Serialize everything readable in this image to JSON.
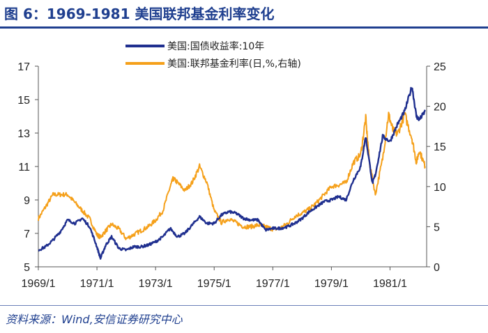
{
  "title": "图 6：1969-1981 美国联邦基金利率变化",
  "source": "资料来源：Wind,安信证券研究中心",
  "chart_data": {
    "type": "line",
    "legend": {
      "placement": "top-center"
    },
    "grid": false,
    "x_ticks": [
      "1969/1",
      "1971/1",
      "1973/1",
      "1975/1",
      "1977/1",
      "1979/1",
      "1981/1"
    ],
    "xlim": [
      1969.0,
      1982.25
    ],
    "y_left": {
      "lim": [
        5,
        17
      ],
      "ticks": [
        5,
        7,
        9,
        11,
        13,
        15,
        17
      ]
    },
    "y_right": {
      "lim": [
        0,
        25
      ],
      "ticks": [
        0,
        5,
        10,
        15,
        20,
        25
      ]
    },
    "series": [
      {
        "name": "美国:国债收益率:10年",
        "axis": "left",
        "color": "#1f2f8f",
        "points": [
          [
            1969.0,
            6.0
          ],
          [
            1969.25,
            6.2
          ],
          [
            1969.5,
            6.6
          ],
          [
            1969.75,
            7.1
          ],
          [
            1970.0,
            7.8
          ],
          [
            1970.25,
            7.6
          ],
          [
            1970.5,
            7.9
          ],
          [
            1970.75,
            7.4
          ],
          [
            1971.0,
            6.2
          ],
          [
            1971.12,
            5.5
          ],
          [
            1971.3,
            6.3
          ],
          [
            1971.5,
            6.8
          ],
          [
            1971.75,
            6.1
          ],
          [
            1972.0,
            6.0
          ],
          [
            1972.25,
            6.2
          ],
          [
            1972.5,
            6.2
          ],
          [
            1972.75,
            6.3
          ],
          [
            1973.0,
            6.5
          ],
          [
            1973.25,
            6.8
          ],
          [
            1973.5,
            7.3
          ],
          [
            1973.75,
            6.8
          ],
          [
            1974.0,
            7.0
          ],
          [
            1974.25,
            7.5
          ],
          [
            1974.5,
            8.0
          ],
          [
            1974.75,
            7.6
          ],
          [
            1975.0,
            7.6
          ],
          [
            1975.25,
            8.1
          ],
          [
            1975.5,
            8.3
          ],
          [
            1975.75,
            8.2
          ],
          [
            1976.0,
            7.9
          ],
          [
            1976.25,
            7.8
          ],
          [
            1976.5,
            7.8
          ],
          [
            1976.75,
            7.2
          ],
          [
            1977.0,
            7.3
          ],
          [
            1977.25,
            7.3
          ],
          [
            1977.5,
            7.4
          ],
          [
            1977.75,
            7.6
          ],
          [
            1978.0,
            7.9
          ],
          [
            1978.25,
            8.3
          ],
          [
            1978.5,
            8.6
          ],
          [
            1978.75,
            8.9
          ],
          [
            1979.0,
            9.0
          ],
          [
            1979.25,
            9.2
          ],
          [
            1979.5,
            9.0
          ],
          [
            1979.75,
            10.2
          ],
          [
            1980.0,
            11.0
          ],
          [
            1980.17,
            12.8
          ],
          [
            1980.4,
            10.0
          ],
          [
            1980.5,
            10.5
          ],
          [
            1980.75,
            12.8
          ],
          [
            1981.0,
            12.5
          ],
          [
            1981.25,
            13.5
          ],
          [
            1981.5,
            14.3
          ],
          [
            1981.75,
            15.8
          ],
          [
            1981.9,
            14.0
          ],
          [
            1982.0,
            13.8
          ],
          [
            1982.2,
            14.3
          ]
        ]
      },
      {
        "name": "美国:联邦基金利率(日,%,右轴)",
        "axis": "right",
        "color": "#f5a01a",
        "points": [
          [
            1969.0,
            6.0
          ],
          [
            1969.25,
            7.5
          ],
          [
            1969.5,
            9.0
          ],
          [
            1969.75,
            9.0
          ],
          [
            1970.0,
            9.0
          ],
          [
            1970.25,
            8.0
          ],
          [
            1970.5,
            7.0
          ],
          [
            1970.75,
            6.0
          ],
          [
            1971.0,
            4.0
          ],
          [
            1971.12,
            3.7
          ],
          [
            1971.3,
            4.5
          ],
          [
            1971.5,
            5.3
          ],
          [
            1971.75,
            4.7
          ],
          [
            1972.0,
            3.5
          ],
          [
            1972.25,
            4.0
          ],
          [
            1972.5,
            4.5
          ],
          [
            1972.75,
            5.0
          ],
          [
            1973.0,
            5.8
          ],
          [
            1973.25,
            7.0
          ],
          [
            1973.5,
            10.0
          ],
          [
            1973.6,
            11.0
          ],
          [
            1973.75,
            10.5
          ],
          [
            1974.0,
            9.5
          ],
          [
            1974.25,
            10.5
          ],
          [
            1974.5,
            12.5
          ],
          [
            1974.75,
            10.5
          ],
          [
            1975.0,
            7.0
          ],
          [
            1975.25,
            5.5
          ],
          [
            1975.5,
            6.0
          ],
          [
            1975.75,
            5.5
          ],
          [
            1976.0,
            5.0
          ],
          [
            1976.25,
            5.0
          ],
          [
            1976.5,
            5.2
          ],
          [
            1976.75,
            5.0
          ],
          [
            1977.0,
            4.7
          ],
          [
            1977.25,
            4.8
          ],
          [
            1977.5,
            5.4
          ],
          [
            1977.75,
            6.3
          ],
          [
            1978.0,
            6.7
          ],
          [
            1978.25,
            7.2
          ],
          [
            1978.5,
            8.0
          ],
          [
            1978.75,
            9.0
          ],
          [
            1979.0,
            10.0
          ],
          [
            1979.25,
            10.2
          ],
          [
            1979.5,
            10.5
          ],
          [
            1979.75,
            13.0
          ],
          [
            1980.0,
            14.0
          ],
          [
            1980.17,
            18.5
          ],
          [
            1980.3,
            13.0
          ],
          [
            1980.5,
            9.0
          ],
          [
            1980.75,
            13.5
          ],
          [
            1980.95,
            19.0
          ],
          [
            1981.1,
            17.0
          ],
          [
            1981.25,
            16.5
          ],
          [
            1981.5,
            19.0
          ],
          [
            1981.75,
            16.0
          ],
          [
            1981.9,
            13.0
          ],
          [
            1982.0,
            14.5
          ],
          [
            1982.2,
            12.5
          ]
        ]
      }
    ]
  }
}
